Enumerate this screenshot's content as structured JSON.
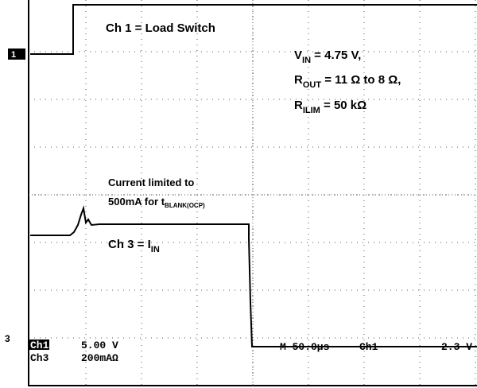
{
  "channel1_label": "Ch 1 = Load Switch",
  "conditions": [
    {
      "symbol": "V",
      "subscript": "IN",
      "text": " = 4.75 V,"
    },
    {
      "symbol": "R",
      "subscript": "OUT",
      "text": " = 11 Ω to 8 Ω,"
    },
    {
      "symbol": "R",
      "subscript": "ILIM",
      "text": " = 50 kΩ"
    }
  ],
  "annotation": {
    "line1": "Current limited to",
    "line2": "500mA for t",
    "line2_subscript": "BLANK(OCP)"
  },
  "channel3_label": {
    "text": "Ch 3 = I",
    "subscript": "IN"
  },
  "markers": [
    "1",
    "3"
  ],
  "readout": {
    "ch1": "Ch1",
    "ch1_scale": "5.00 V",
    "ch3": "Ch3",
    "ch3_scale": "200mAΩ",
    "timebase": "M 50.0µs",
    "trigger_source": "Ch1",
    "trigger_level": "2.3 V"
  }
}
